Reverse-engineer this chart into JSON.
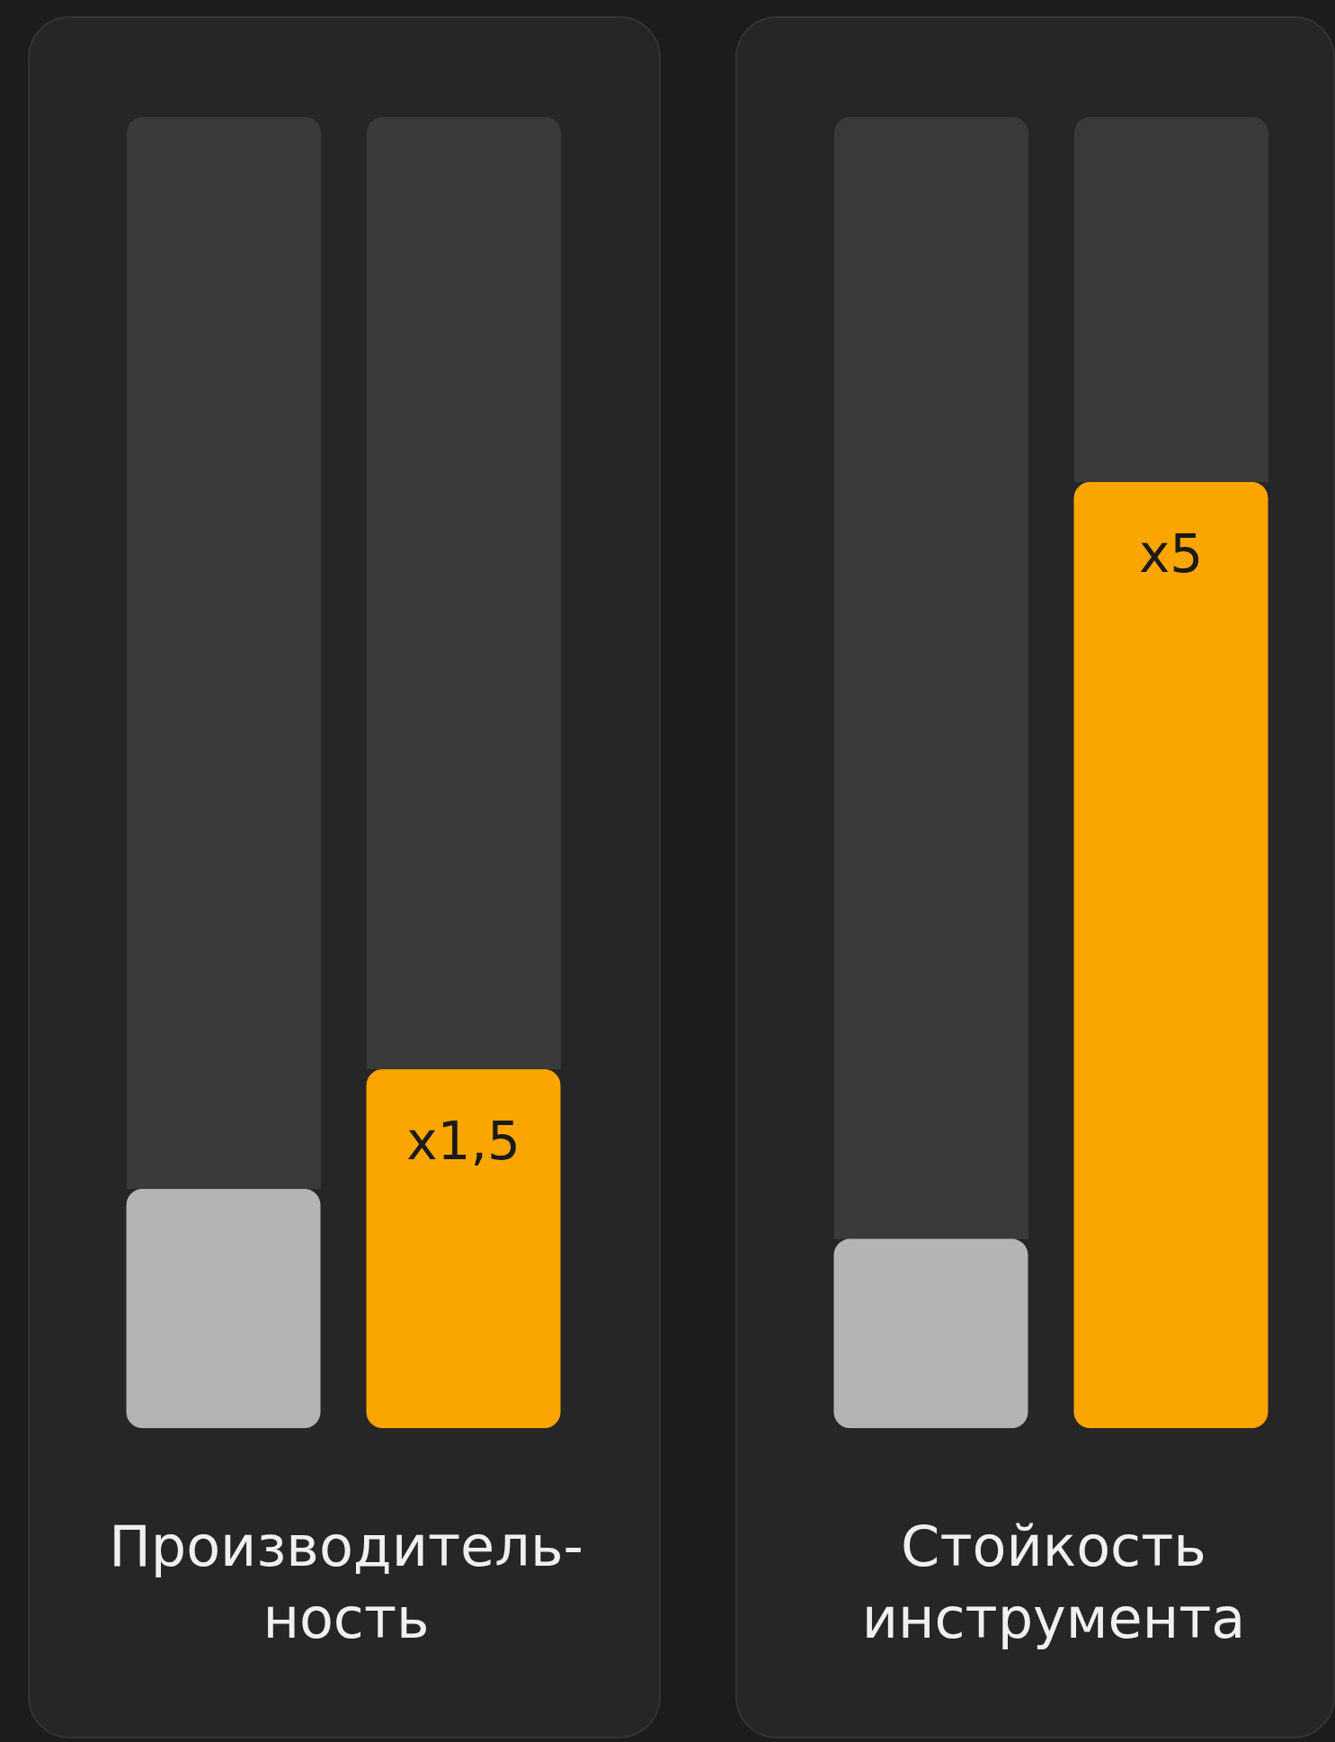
{
  "chart_data": [
    {
      "type": "bar",
      "xlabel": "Производитель-ность",
      "categories": [
        null,
        null
      ],
      "colors": [
        "#b4b4b4",
        "#fba500"
      ],
      "values": [
        1,
        1.5
      ],
      "value_labels": [
        null,
        "x1,5"
      ]
    },
    {
      "type": "bar",
      "xlabel": "Стойкость инструмента",
      "categories": [
        null,
        null
      ],
      "colors": [
        "#b4b4b4",
        "#fba500"
      ],
      "values": [
        1,
        5
      ],
      "value_labels": [
        null,
        "x5"
      ]
    }
  ]
}
